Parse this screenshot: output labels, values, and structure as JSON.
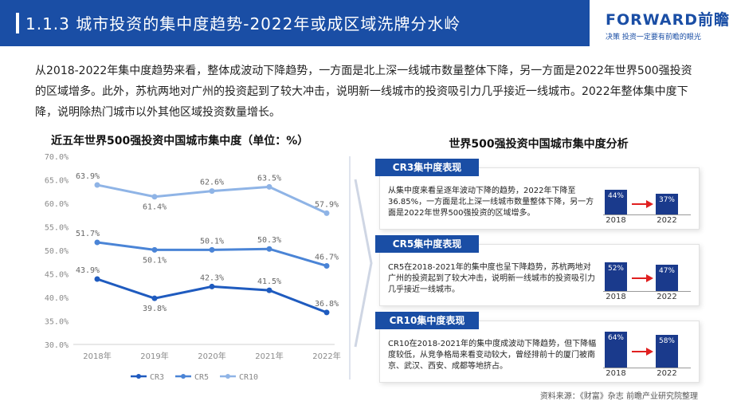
{
  "header": {
    "title": "1.1.3 城市投资的集中度趋势-2022年或成区域洗牌分水岭",
    "logo_main": "FORWARD前瞻",
    "logo_sub": "决策 投资一定要有前瞻的眼光"
  },
  "intro": "从2018-2022年集中度趋势来看，整体成波动下降趋势，一方面是北上深一线城市数量整体下降，另一方面是2022年世界500强投资的区域增多。此外，苏杭两地对广州的投资起到了较大冲击，说明新一线城市的投资吸引力几乎接近一线城市。2022年整体集中度下降，说明除热门城市以外其他区域投资数量增长。",
  "chart_data": {
    "type": "line",
    "title": "近五年世界500强投资中国城市集中度（单位：%）",
    "x": [
      "2018年",
      "2019年",
      "2020年",
      "2021年",
      "2022年"
    ],
    "y_ticks": [
      "70.0%",
      "65.0%",
      "60.0%",
      "55.0%",
      "50.0%",
      "45.0%",
      "40.0%",
      "35.0%",
      "30.0%"
    ],
    "ylim": [
      30,
      70
    ],
    "grid": false,
    "legend_position": "bottom",
    "series": [
      {
        "name": "CR3",
        "color": "#1f5bbf",
        "values": [
          43.9,
          39.8,
          42.3,
          41.5,
          36.8
        ],
        "labels": [
          "43.9%",
          "39.8%",
          "42.3%",
          "41.5%",
          "36.8%"
        ]
      },
      {
        "name": "CR5",
        "color": "#4a84d6",
        "values": [
          51.7,
          50.1,
          50.1,
          50.3,
          46.7
        ],
        "labels": [
          "51.7%",
          "50.1%",
          "50.1%",
          "50.3%",
          "46.7%"
        ]
      },
      {
        "name": "CR10",
        "color": "#8fb4e6",
        "values": [
          63.9,
          61.4,
          62.6,
          63.5,
          57.9
        ],
        "labels": [
          "63.9%",
          "61.4%",
          "62.6%",
          "63.5%",
          "57.9%"
        ]
      }
    ]
  },
  "analysis": {
    "title": "世界500强投资中国城市集中度分析",
    "cards": [
      {
        "label": "CR3集中度表现",
        "text": "从集中度来看呈逐年波动下降的趋势，2022年下降至36.85%，一方面是北上深一线城市数量整体下降，另一方面是2022年世界500强投资的区域增多。",
        "v2018": "44%",
        "v2022": "37%",
        "r2018": 0.44,
        "r2022": 0.37,
        "y2018": "2018",
        "y2022": "2022"
      },
      {
        "label": "CR5集中度表现",
        "text": "CR5在2018-2021年的集中度也呈下降趋势，苏杭两地对广州的投资起到了较大冲击，说明新一线城市的投资吸引力几乎接近一线城市。",
        "v2018": "52%",
        "v2022": "47%",
        "r2018": 0.52,
        "r2022": 0.47,
        "y2018": "2018",
        "y2022": "2022"
      },
      {
        "label": "CR10集中度表现",
        "text": "CR10在2018-2021年的集中度成波动下降趋势，但下降幅度较低，从竞争格局来看变动较大，曾经排前十的厦门被南京、武汉、西安、成都等地挤占。",
        "v2018": "64%",
        "v2022": "58%",
        "r2018": 0.64,
        "r2022": 0.58,
        "y2018": "2018",
        "y2022": "2022"
      }
    ]
  },
  "source": "资料来源：《财富》杂志 前瞻产业研究院整理",
  "colors": {
    "brand": "#1a4ea5",
    "bar": "#1a3a8c",
    "arrow": "#e02020"
  }
}
